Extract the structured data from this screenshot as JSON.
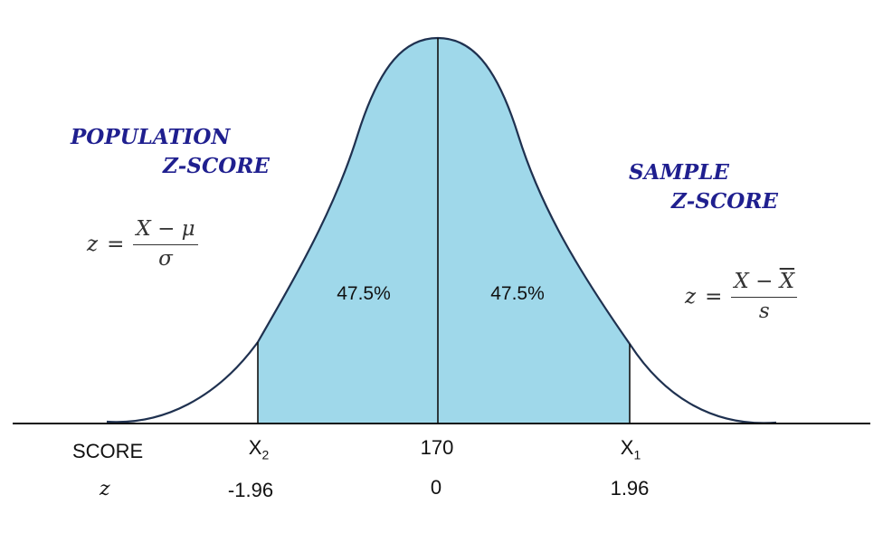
{
  "population": {
    "title_line1": "POPULATION",
    "title_line2": "Z-SCORE",
    "formula": {
      "lhs": "z",
      "eq": "=",
      "numerator": "X − μ",
      "denominator": "σ"
    }
  },
  "sample": {
    "title_line1": "SAMPLE",
    "title_line2": "Z-SCORE",
    "formula": {
      "lhs": "z",
      "eq": "=",
      "numerator_left": "X −",
      "numerator_right": "X",
      "denominator": "s"
    }
  },
  "regions": {
    "left_percent": "47.5%",
    "right_percent": "47.5%"
  },
  "score_row": {
    "label": "SCORE",
    "left": "X",
    "left_sub": "2",
    "center": "170",
    "right": "X",
    "right_sub": "1"
  },
  "z_row": {
    "label": "z",
    "left": "-1.96",
    "center": "0",
    "right": "1.96"
  },
  "colors": {
    "fill": "#9fd8ea",
    "curve": "#1f3150",
    "title": "#1f1f8f"
  }
}
